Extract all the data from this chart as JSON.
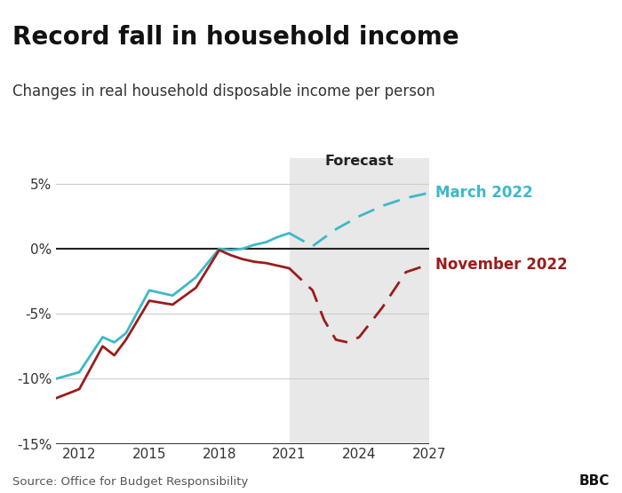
{
  "title": "Record fall in household income",
  "subtitle": "Changes in real household disposable income per person",
  "source": "Source: Office for Budget Responsibility",
  "bbc_label": "BBC",
  "march_solid_x": [
    2011,
    2012,
    2013,
    2013.5,
    2014,
    2015,
    2016,
    2017,
    2018,
    2018.5,
    2019,
    2019.5,
    2020,
    2020.5,
    2021
  ],
  "march_solid_y": [
    -10.0,
    -9.5,
    -6.8,
    -7.2,
    -6.5,
    -3.2,
    -3.6,
    -2.2,
    0.0,
    -0.1,
    0.0,
    0.3,
    0.5,
    0.9,
    1.2
  ],
  "march_dashed_x": [
    2021,
    2022,
    2023,
    2024,
    2025,
    2026,
    2027
  ],
  "march_dashed_y": [
    1.2,
    0.2,
    1.5,
    2.5,
    3.3,
    3.9,
    4.3
  ],
  "nov_solid_x": [
    2011,
    2012,
    2013,
    2013.5,
    2014,
    2015,
    2016,
    2017,
    2018,
    2018.5,
    2019,
    2019.5,
    2020,
    2020.5,
    2021
  ],
  "nov_solid_y": [
    -11.5,
    -10.8,
    -7.5,
    -8.2,
    -7.0,
    -4.0,
    -4.3,
    -3.0,
    -0.1,
    -0.5,
    -0.8,
    -1.0,
    -1.1,
    -1.3,
    -1.5
  ],
  "nov_dashed_x": [
    2021,
    2022,
    2022.5,
    2023,
    2023.5,
    2024,
    2025,
    2026,
    2027
  ],
  "nov_dashed_y": [
    -1.5,
    -3.2,
    -5.5,
    -7.0,
    -7.2,
    -6.8,
    -4.5,
    -1.8,
    -1.2
  ],
  "forecast_start": 2021,
  "forecast_end": 2027,
  "march_color": "#3db8c8",
  "nov_color": "#9b1c1c",
  "bg_color": "#ffffff",
  "forecast_bg": "#e8e8e8",
  "grid_color": "#cccccc",
  "xlim": [
    2011,
    2027
  ],
  "ylim": [
    -15,
    7
  ],
  "yticks": [
    -15,
    -10,
    -5,
    0,
    5
  ],
  "xticks": [
    2012,
    2015,
    2018,
    2021,
    2024,
    2027
  ],
  "march_label": "March 2022",
  "nov_label": "November 2022",
  "forecast_label": "Forecast",
  "title_fontsize": 20,
  "subtitle_fontsize": 12,
  "tick_fontsize": 11,
  "label_fontsize": 12
}
